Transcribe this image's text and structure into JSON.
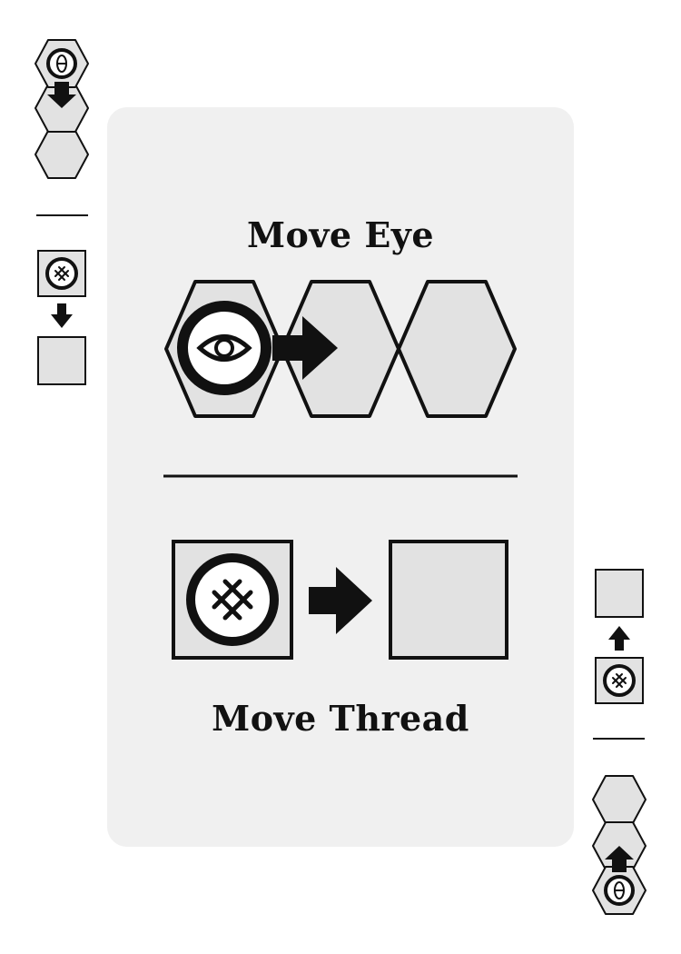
{
  "card": {
    "actions": [
      {
        "id": "move-eye",
        "title": "Move Eye"
      },
      {
        "id": "move-thread",
        "title": "Move Thread"
      }
    ]
  },
  "colors": {
    "panel": "#f0f0f0",
    "tile_fill": "#e2e2e2",
    "ink": "#111111",
    "token_face": "#ffffff"
  },
  "icons": {
    "eye_token": "eye-icon",
    "thread_token": "thread-knot-icon",
    "arrow": "arrow-right-icon"
  }
}
